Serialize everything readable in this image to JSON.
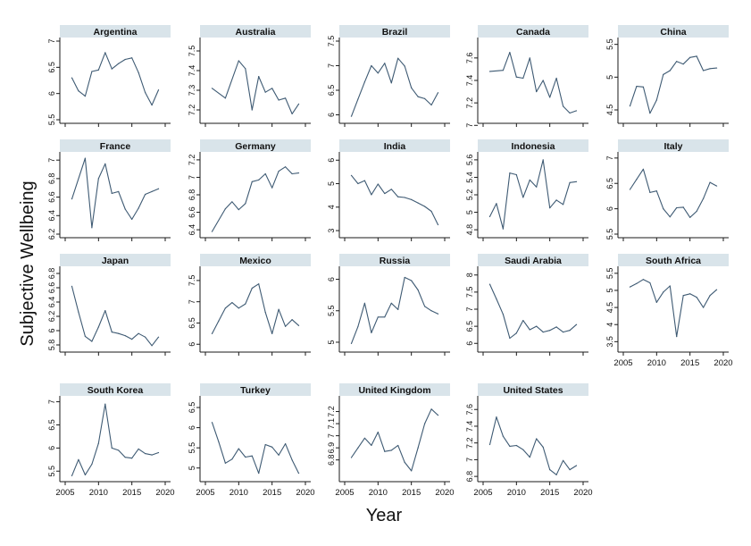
{
  "figure": {
    "y_axis_title": "Subjective Wellbeing",
    "x_axis_title": "Year"
  },
  "style": {
    "line_color": "#3e5a73",
    "header_color": "#d9e4ea",
    "frame_color": "#1a1a1a",
    "tick_label_color": "#111111"
  },
  "chart_data": [
    {
      "type": "line",
      "title": "Argentina",
      "xlim": [
        2005,
        2020
      ],
      "ylim": [
        5.5,
        7
      ],
      "ytick_labels": [
        "5.5",
        "6",
        "6.5",
        "7"
      ],
      "x": [
        2006,
        2007,
        2008,
        2009,
        2010,
        2011,
        2012,
        2013,
        2014,
        2015,
        2016,
        2017,
        2018,
        2019
      ],
      "y": [
        6.3,
        6.05,
        5.95,
        6.42,
        6.45,
        6.78,
        6.47,
        6.57,
        6.65,
        6.68,
        6.4,
        6.02,
        5.78,
        6.07
      ]
    },
    {
      "type": "line",
      "title": "Australia",
      "xlim": [
        2005,
        2020
      ],
      "ylim": [
        7.15,
        7.55
      ],
      "ytick_labels": [
        "7.2",
        "7.3",
        "7.4",
        "7.5"
      ],
      "x": [
        2006,
        2008,
        2010,
        2011,
        2012,
        2013,
        2014,
        2015,
        2016,
        2017,
        2018,
        2019
      ],
      "y": [
        7.31,
        7.26,
        7.45,
        7.41,
        7.2,
        7.37,
        7.29,
        7.31,
        7.25,
        7.26,
        7.18,
        7.23
      ]
    },
    {
      "type": "line",
      "title": "Brazil",
      "xlim": [
        2005,
        2020
      ],
      "ylim": [
        5.9,
        7.5
      ],
      "ytick_labels": [
        "6",
        "6.5",
        "7",
        "7.5"
      ],
      "x": [
        2006,
        2007,
        2008,
        2009,
        2010,
        2011,
        2012,
        2013,
        2014,
        2015,
        2016,
        2017,
        2018,
        2019
      ],
      "y": [
        5.97,
        6.32,
        6.67,
        7.0,
        6.85,
        7.05,
        6.65,
        7.15,
        6.99,
        6.55,
        6.37,
        6.33,
        6.2,
        6.45
      ]
    },
    {
      "type": "line",
      "title": "Canada",
      "xlim": [
        2005,
        2020
      ],
      "ylim": [
        7.05,
        7.75
      ],
      "ytick_labels": [
        "7",
        "7.2",
        "7.4",
        "7.6"
      ],
      "x": [
        2006,
        2008,
        2009,
        2010,
        2011,
        2012,
        2013,
        2014,
        2015,
        2016,
        2017,
        2018,
        2019
      ],
      "y": [
        7.48,
        7.49,
        7.65,
        7.43,
        7.42,
        7.6,
        7.3,
        7.4,
        7.25,
        7.42,
        7.17,
        7.11,
        7.13
      ]
    },
    {
      "type": "line",
      "title": "China",
      "xlim": [
        2005,
        2020
      ],
      "ylim": [
        4.35,
        5.55
      ],
      "ytick_labels": [
        "4.5",
        "5",
        "5.5"
      ],
      "x": [
        2006,
        2007,
        2008,
        2009,
        2010,
        2011,
        2012,
        2013,
        2014,
        2015,
        2016,
        2017,
        2018,
        2019
      ],
      "y": [
        4.56,
        4.86,
        4.85,
        4.45,
        4.65,
        5.04,
        5.1,
        5.24,
        5.2,
        5.3,
        5.32,
        5.1,
        5.13,
        5.14
      ]
    },
    {
      "type": "line",
      "title": "France",
      "xlim": [
        2005,
        2020
      ],
      "ylim": [
        6.2,
        7.05
      ],
      "ytick_labels": [
        "6.2",
        "6.4",
        "6.6",
        "6.8",
        "7"
      ],
      "x": [
        2006,
        2008,
        2009,
        2010,
        2011,
        2012,
        2013,
        2014,
        2015,
        2016,
        2017,
        2018,
        2019
      ],
      "y": [
        6.58,
        7.02,
        6.27,
        6.8,
        6.96,
        6.64,
        6.66,
        6.47,
        6.36,
        6.48,
        6.63,
        6.66,
        6.69
      ]
    },
    {
      "type": "line",
      "title": "Germany",
      "xlim": [
        2005,
        2020
      ],
      "ylim": [
        6.35,
        7.25
      ],
      "ytick_labels": [
        "6.4",
        "6.6",
        "6.8",
        "7",
        "7.2"
      ],
      "x": [
        2006,
        2008,
        2009,
        2010,
        2011,
        2012,
        2013,
        2014,
        2015,
        2016,
        2017,
        2018,
        2019
      ],
      "y": [
        6.38,
        6.64,
        6.72,
        6.63,
        6.7,
        6.95,
        6.97,
        7.04,
        6.88,
        7.07,
        7.12,
        7.04,
        7.05
      ]
    },
    {
      "type": "line",
      "title": "India",
      "xlim": [
        2005,
        2020
      ],
      "ylim": [
        2.85,
        6.2
      ],
      "ytick_labels": [
        "3",
        "4",
        "5",
        "6"
      ],
      "x": [
        2006,
        2007,
        2008,
        2009,
        2010,
        2011,
        2012,
        2013,
        2014,
        2015,
        2016,
        2017,
        2018,
        2019
      ],
      "y": [
        5.35,
        5.0,
        5.13,
        4.53,
        4.98,
        4.58,
        4.76,
        4.44,
        4.41,
        4.32,
        4.18,
        4.03,
        3.82,
        3.25
      ]
    },
    {
      "type": "line",
      "title": "Indonesia",
      "xlim": [
        2005,
        2020
      ],
      "ylim": [
        4.75,
        5.65
      ],
      "ytick_labels": [
        "4.8",
        "5",
        "5.2",
        "5.4",
        "5.6"
      ],
      "x": [
        2006,
        2007,
        2008,
        2009,
        2010,
        2011,
        2012,
        2013,
        2014,
        2015,
        2016,
        2017,
        2018,
        2019
      ],
      "y": [
        4.95,
        5.1,
        4.81,
        5.45,
        5.43,
        5.17,
        5.37,
        5.29,
        5.6,
        5.05,
        5.14,
        5.09,
        5.34,
        5.35
      ]
    },
    {
      "type": "line",
      "title": "Italy",
      "xlim": [
        2005,
        2020
      ],
      "ylim": [
        5.5,
        7.05
      ],
      "ytick_labels": [
        "5.5",
        "6",
        "6.5",
        "7"
      ],
      "x": [
        2006,
        2007,
        2008,
        2009,
        2010,
        2011,
        2012,
        2013,
        2014,
        2015,
        2016,
        2017,
        2018,
        2019
      ],
      "y": [
        6.38,
        6.58,
        6.78,
        6.32,
        6.35,
        6.0,
        5.84,
        6.02,
        6.03,
        5.83,
        5.95,
        6.2,
        6.52,
        6.45
      ]
    },
    {
      "type": "line",
      "title": "Japan",
      "xlim": [
        2005,
        2020
      ],
      "ylim": [
        5.75,
        6.85
      ],
      "ytick_labels": [
        "5.8",
        "6",
        "6.2",
        "6.4",
        "6.6",
        "6.8"
      ],
      "x": [
        2006,
        2007,
        2008,
        2009,
        2010,
        2011,
        2012,
        2013,
        2014,
        2015,
        2016,
        2017,
        2018,
        2019
      ],
      "y": [
        6.62,
        6.26,
        5.92,
        5.85,
        6.05,
        6.28,
        5.98,
        5.96,
        5.93,
        5.88,
        5.96,
        5.91,
        5.79,
        5.91
      ]
    },
    {
      "type": "line",
      "title": "Mexico",
      "xlim": [
        2005,
        2020
      ],
      "ylim": [
        5.9,
        7.75
      ],
      "ytick_labels": [
        "6",
        "6.5",
        "7",
        "7.5"
      ],
      "x": [
        2006,
        2007,
        2008,
        2009,
        2010,
        2011,
        2012,
        2013,
        2014,
        2015,
        2016,
        2017,
        2018,
        2019
      ],
      "y": [
        6.25,
        6.55,
        6.85,
        6.98,
        6.85,
        6.95,
        7.32,
        7.42,
        6.75,
        6.25,
        6.82,
        6.42,
        6.58,
        6.44
      ]
    },
    {
      "type": "line",
      "title": "Russia",
      "xlim": [
        2005,
        2020
      ],
      "ylim": [
        4.9,
        6.15
      ],
      "ytick_labels": [
        "5",
        "5.5",
        "6"
      ],
      "x": [
        2006,
        2007,
        2008,
        2009,
        2010,
        2011,
        2012,
        2013,
        2014,
        2015,
        2016,
        2017,
        2018,
        2019
      ],
      "y": [
        4.98,
        5.25,
        5.62,
        5.15,
        5.4,
        5.4,
        5.62,
        5.52,
        6.03,
        5.98,
        5.83,
        5.57,
        5.5,
        5.45
      ]
    },
    {
      "type": "line",
      "title": "Saudi Arabia",
      "xlim": [
        2005,
        2020
      ],
      "ylim": [
        5.85,
        8.15
      ],
      "ytick_labels": [
        "6",
        "6.5",
        "7",
        "7.5",
        "8"
      ],
      "x": [
        2006,
        2007,
        2008,
        2009,
        2010,
        2011,
        2012,
        2013,
        2014,
        2015,
        2016,
        2017,
        2018,
        2019
      ],
      "y": [
        7.73,
        7.3,
        6.85,
        6.15,
        6.3,
        6.67,
        6.4,
        6.5,
        6.33,
        6.38,
        6.48,
        6.33,
        6.38,
        6.55
      ]
    },
    {
      "type": "line",
      "title": "South Africa",
      "xlim": [
        2005,
        2020
      ],
      "ylim": [
        3.3,
        5.6
      ],
      "ytick_labels": [
        "3.5",
        "4",
        "4.5",
        "5",
        "5.5"
      ],
      "x": [
        2006,
        2007,
        2008,
        2009,
        2010,
        2011,
        2012,
        2013,
        2014,
        2015,
        2016,
        2017,
        2018,
        2019
      ],
      "y": [
        5.1,
        5.2,
        5.32,
        5.22,
        4.65,
        4.95,
        5.13,
        3.65,
        4.85,
        4.9,
        4.8,
        4.5,
        4.85,
        5.02
      ]
    },
    {
      "type": "line",
      "title": "South Korea",
      "xlim": [
        2005,
        2020
      ],
      "ylim": [
        5.35,
        7.05
      ],
      "ytick_labels": [
        "5.5",
        "6",
        "6.5",
        "7"
      ],
      "x": [
        2006,
        2007,
        2008,
        2009,
        2010,
        2011,
        2012,
        2013,
        2014,
        2015,
        2016,
        2017,
        2018,
        2019
      ],
      "y": [
        5.4,
        5.75,
        5.42,
        5.65,
        6.1,
        6.95,
        6.0,
        5.95,
        5.8,
        5.78,
        5.98,
        5.88,
        5.85,
        5.9
      ]
    },
    {
      "type": "line",
      "title": "Turkey",
      "xlim": [
        2005,
        2020
      ],
      "ylim": [
        4.75,
        6.7
      ],
      "ytick_labels": [
        "5",
        "5.5",
        "6",
        "6.5"
      ],
      "x": [
        2006,
        2007,
        2008,
        2009,
        2010,
        2011,
        2012,
        2013,
        2014,
        2015,
        2016,
        2017,
        2018,
        2019
      ],
      "y": [
        6.13,
        5.65,
        5.12,
        5.22,
        5.48,
        5.27,
        5.3,
        4.87,
        5.58,
        5.52,
        5.32,
        5.6,
        5.2,
        4.87
      ]
    },
    {
      "type": "line",
      "title": "United Kingdom",
      "xlim": [
        2005,
        2020
      ],
      "ylim": [
        6.65,
        7.3
      ],
      "ytick_labels": [
        "6.8",
        "6.9",
        "7",
        "7.1",
        "7.2"
      ],
      "x": [
        2006,
        2007,
        2008,
        2009,
        2010,
        2011,
        2012,
        2013,
        2014,
        2015,
        2016,
        2017,
        2018,
        2019
      ],
      "y": [
        6.82,
        6.9,
        6.98,
        6.92,
        7.03,
        6.87,
        6.88,
        6.92,
        6.78,
        6.71,
        6.9,
        7.1,
        7.22,
        7.17
      ]
    },
    {
      "type": "line",
      "title": "United States",
      "xlim": [
        2005,
        2020
      ],
      "ylim": [
        6.78,
        7.72
      ],
      "ytick_labels": [
        "6.8",
        "7",
        "7.2",
        "7.4",
        "7.6"
      ],
      "x": [
        2006,
        2007,
        2008,
        2009,
        2010,
        2011,
        2012,
        2013,
        2014,
        2015,
        2016,
        2017,
        2018,
        2019
      ],
      "y": [
        7.18,
        7.51,
        7.28,
        7.16,
        7.17,
        7.12,
        7.03,
        7.25,
        7.15,
        6.88,
        6.82,
        6.99,
        6.88,
        6.93
      ]
    }
  ],
  "x_tick_labels": [
    "2005",
    "2010",
    "2015",
    "2020"
  ],
  "x_tick_values": [
    2005,
    2010,
    2015,
    2020
  ],
  "x_axis_panels": [
    "South Africa",
    "South Korea",
    "Turkey",
    "United Kingdom",
    "United States"
  ]
}
